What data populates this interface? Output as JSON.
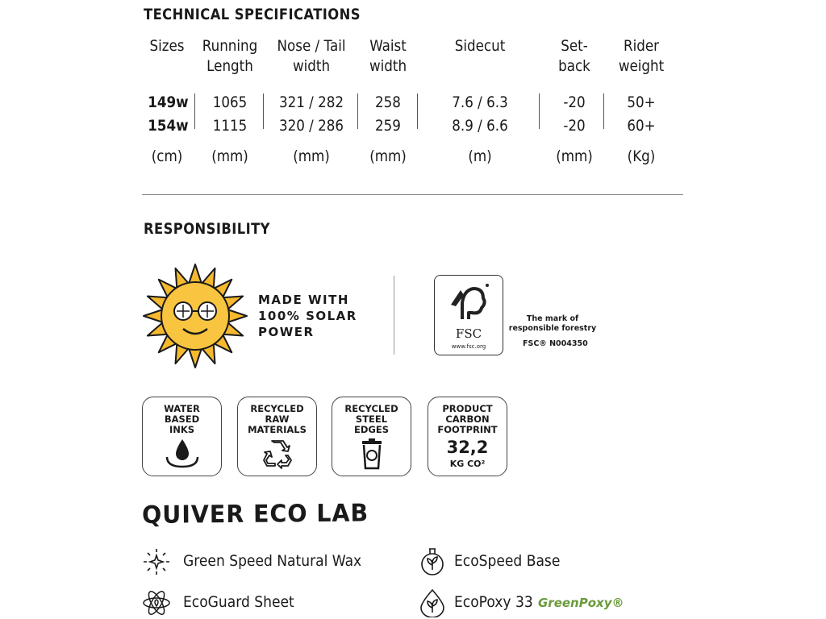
{
  "specs": {
    "title": "TECHNICAL SPECIFICATIONS",
    "columns": [
      {
        "header": "Sizes",
        "rows": [
          "149w",
          "154w"
        ],
        "unit": "(cm)"
      },
      {
        "header": "Running\nLength",
        "rows": [
          "1065",
          "1115"
        ],
        "unit": "(mm)"
      },
      {
        "header": "Nose / Tail\nwidth",
        "rows": [
          "321 / 282",
          "320 / 286"
        ],
        "unit": "(mm)"
      },
      {
        "header": "Waist\nwidth",
        "rows": [
          "258",
          "259"
        ],
        "unit": "(mm)"
      },
      {
        "header": "Sidecut",
        "rows": [
          "7.6 / 6.3",
          "8.9 / 6.6"
        ],
        "unit": "(m)"
      },
      {
        "header": "Set-\nback",
        "rows": [
          "-20",
          "-20"
        ],
        "unit": "(mm)"
      },
      {
        "header": "Rider\nweight",
        "rows": [
          "50+",
          "60+"
        ],
        "unit": "(Kg)"
      }
    ]
  },
  "responsibility": {
    "title": "RESPONSIBILITY",
    "solar_text": "MADE WITH\n100% SOLAR\nPOWER",
    "fsc": {
      "label": "FSC",
      "url": "www.fsc.org",
      "mark": "The mark of\nresponsible forestry",
      "code": "FSC® N004350"
    },
    "badges": [
      {
        "text": "WATER\nBASED\nINKS",
        "icon": "water-drop-icon"
      },
      {
        "text": "RECYCLED\nRAW\nMATERIALS",
        "icon": "recycle-icon"
      },
      {
        "text": "RECYCLED\nSTEEL\nEDGES",
        "icon": "recycle-bin-icon"
      },
      {
        "text": "PRODUCT\nCARBON\nFOOTPRINT",
        "value": "32,2",
        "unit": "KG CO²"
      }
    ]
  },
  "eco_lab": {
    "title": "QUIVER ECO LAB",
    "items": [
      {
        "label": "Green Speed Natural Wax",
        "icon": "wax-sparkle-icon"
      },
      {
        "label": "EcoSpeed Base",
        "icon": "leaf-flask-icon"
      },
      {
        "label": "EcoGuard Sheet",
        "icon": "atom-icon"
      },
      {
        "label": "EcoPoxy 33",
        "icon": "drop-leaf-icon"
      }
    ],
    "greenpoxy_logo": "GreenPoxy®"
  }
}
